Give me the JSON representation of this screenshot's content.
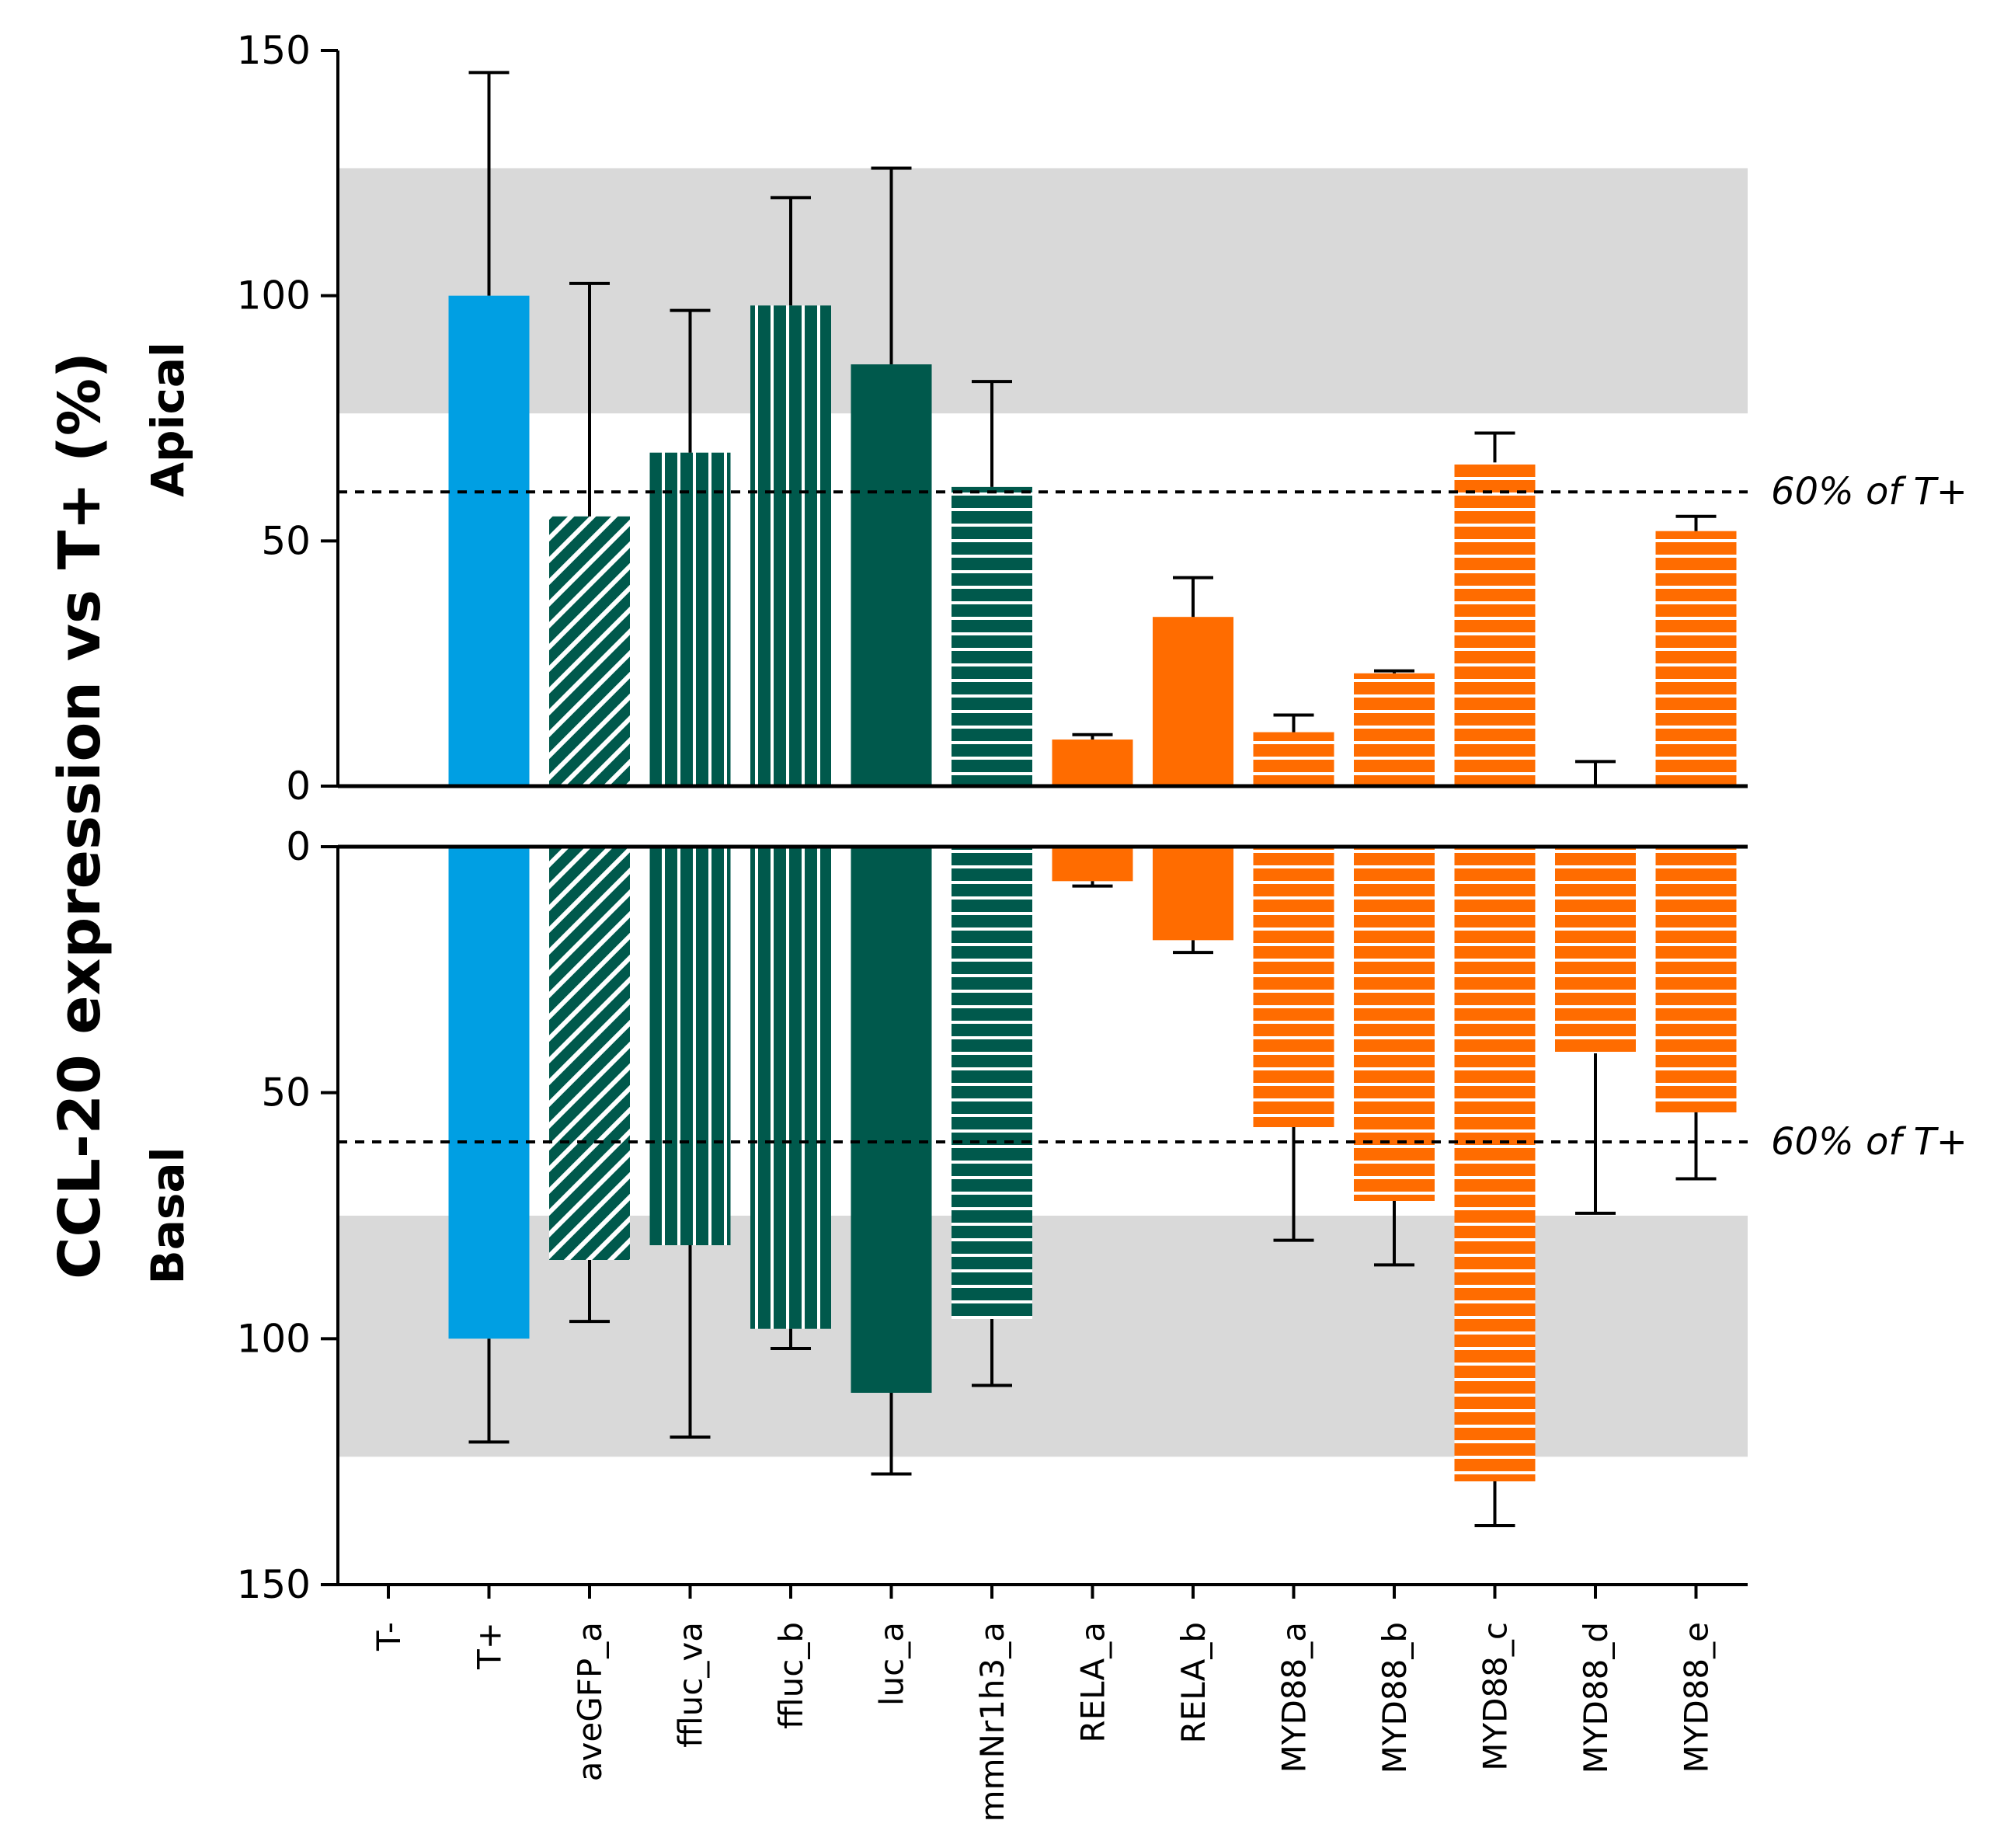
{
  "chart_data": {
    "type": "bar",
    "ylabel": "CCL-20 expression vs  T+ (%)",
    "categories": [
      "T-",
      "T+",
      "aveGFP_a",
      "ffluc_va",
      "ffluc_b",
      "luc_a",
      "mmNr1h3_a",
      "RELA_a",
      "RELA_b",
      "MYD88_a",
      "MYD88_b",
      "MYD88_c",
      "MYD88_d",
      "MYD88_e"
    ],
    "colors": {
      "blue": "#009fe3",
      "teal": "#00594c",
      "orange": "#ff6c00",
      "band": "#d9d9d9"
    },
    "bar_styles": [
      {
        "color": "blue",
        "fill": "solid"
      },
      {
        "color": "blue",
        "fill": "solid"
      },
      {
        "color": "teal",
        "fill": "diagonal"
      },
      {
        "color": "teal",
        "fill": "vertical"
      },
      {
        "color": "teal",
        "fill": "vertical"
      },
      {
        "color": "teal",
        "fill": "solid"
      },
      {
        "color": "teal",
        "fill": "horizontal"
      },
      {
        "color": "orange",
        "fill": "solid"
      },
      {
        "color": "orange",
        "fill": "solid"
      },
      {
        "color": "orange",
        "fill": "horizontal"
      },
      {
        "color": "orange",
        "fill": "horizontal"
      },
      {
        "color": "orange",
        "fill": "horizontal"
      },
      {
        "color": "orange",
        "fill": "horizontal"
      },
      {
        "color": "orange",
        "fill": "horizontal"
      }
    ],
    "panels": [
      {
        "name": "Apical",
        "direction": "up",
        "ylim": [
          0,
          150
        ],
        "ticks": [
          "0",
          "50",
          "100",
          "150"
        ],
        "band": [
          76,
          126
        ],
        "reference_value": 60,
        "reference_label": "60% of T+",
        "values": [
          0,
          100,
          55,
          68,
          98,
          86,
          61,
          9.5,
          34.5,
          11,
          23,
          66,
          0,
          52
        ],
        "error": [
          0,
          45.5,
          47.5,
          29,
          22,
          40,
          21.5,
          1,
          8,
          3.5,
          0.5,
          6,
          5,
          3
        ]
      },
      {
        "name": "Basal",
        "direction": "down",
        "ylim": [
          0,
          150
        ],
        "ticks": [
          "0",
          "50",
          "100",
          "150"
        ],
        "band": [
          75,
          124
        ],
        "reference_value": 60,
        "reference_label": "60% of T+",
        "values": [
          0,
          100,
          84,
          81,
          98,
          111,
          96,
          7,
          19,
          57,
          72,
          129,
          42,
          54
        ],
        "error": [
          0,
          21,
          12.5,
          39,
          4,
          16.5,
          13.5,
          1,
          2.5,
          23,
          13,
          9,
          32.5,
          13.5
        ]
      }
    ]
  }
}
